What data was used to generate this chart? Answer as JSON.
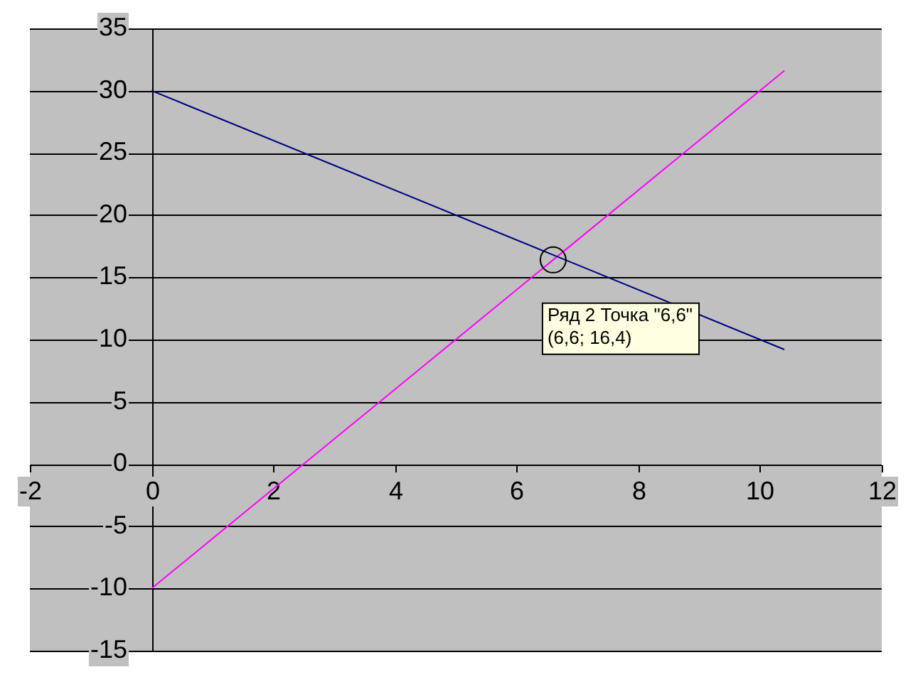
{
  "chart_data": {
    "type": "line",
    "xlim": [
      -2,
      12
    ],
    "ylim": [
      -15,
      35
    ],
    "xticks": [
      -2,
      0,
      2,
      4,
      6,
      8,
      10,
      12
    ],
    "yticks": [
      -15,
      -10,
      -5,
      0,
      5,
      10,
      15,
      20,
      25,
      30,
      35
    ],
    "grid": "y",
    "series": [
      {
        "color": "#000080",
        "x": [
          0,
          6.6,
          10.4
        ],
        "values": [
          30,
          16.8,
          9.2
        ]
      },
      {
        "color": "#ff00ff",
        "x": [
          0,
          6.6,
          10.4
        ],
        "values": [
          -10,
          16.4,
          31.6
        ]
      }
    ],
    "annotations": [
      {
        "text": "Ряд 2 Точка \"6,6\"\n(6,6; 16,4)",
        "x": 6.6,
        "y": 16.4
      }
    ]
  }
}
